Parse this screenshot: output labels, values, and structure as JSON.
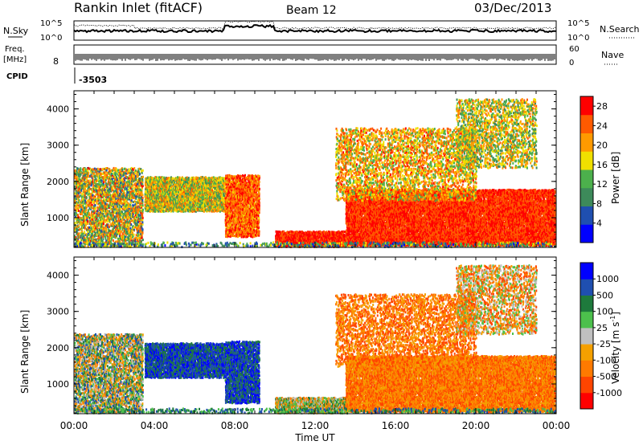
{
  "header": {
    "station": "Rankin Inlet (fitACF)",
    "beam": "Beam 12",
    "date": "03/Dec/2013"
  },
  "top_panels": {
    "nsky_label": "N.Sky",
    "nsearch_label": "N.Search",
    "nsky_tick_hi": "10^5",
    "nsky_tick_lo": "10^0",
    "freq_label": "Freq.",
    "freq_unit": "[MHz]",
    "freq_tick": "8",
    "nave_label": "Nave",
    "nave_tick_hi": "60",
    "nave_tick_lo": "0",
    "cpid_label": "CPID",
    "cpid_value": "-3503"
  },
  "colors": {
    "power": [
      "#0000ff",
      "#1f4fb0",
      "#3d8a5a",
      "#4cb04c",
      "#f0e000",
      "#ff9a00",
      "#ff5a00",
      "#ff0000"
    ],
    "velocity": [
      "#ff0000",
      "#ff4500",
      "#ff7a00",
      "#f5a000",
      "#c0c0c0",
      "#4cc04c",
      "#1e7a3c",
      "#1f4fb0",
      "#0000ff"
    ]
  },
  "chart_data": [
    {
      "type": "heatmap",
      "name": "power",
      "ylabel": "Slant Range [km]",
      "y_ticks": [
        "1000",
        "2000",
        "3000",
        "4000"
      ],
      "ylim": [
        180,
        4500
      ],
      "colorbar_label": "Power [dB]",
      "colorbar_ticks": [
        "4",
        "8",
        "12",
        "16",
        "20",
        "24",
        "28"
      ],
      "colorbar_range": [
        0,
        30
      ]
    },
    {
      "type": "heatmap",
      "name": "velocity",
      "ylabel": "Slant Range [km]",
      "y_ticks": [
        "1000",
        "2000",
        "3000",
        "4000"
      ],
      "ylim": [
        180,
        4500
      ],
      "xlabel": "Time UT",
      "x_ticks": [
        "00:00",
        "04:00",
        "08:00",
        "12:00",
        "16:00",
        "20:00",
        "00:00"
      ],
      "colorbar_label": "Velocity [m s^-1]",
      "colorbar_ticks": [
        "-1000",
        "-500",
        "-100",
        "-25",
        "25",
        "100",
        "500",
        "1000"
      ]
    }
  ]
}
